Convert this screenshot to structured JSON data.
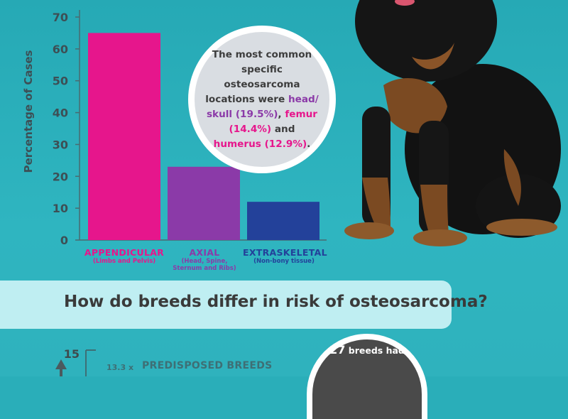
{
  "chart_data": {
    "type": "bar",
    "categories": [
      "APPENDICULAR",
      "AXIAL",
      "EXTRASKELETAL"
    ],
    "category_subtitles": [
      "(Limbs and Pelvis)",
      "(Head, Spine, Sternum and Ribs)",
      "(Non-bony tissue)"
    ],
    "values": [
      65,
      23,
      12
    ],
    "colors": [
      "#e6168c",
      "#8b3aa8",
      "#23419a"
    ],
    "ylabel": "Percentage of Cases",
    "yticks": [
      0,
      10,
      20,
      30,
      40,
      50,
      60,
      70
    ],
    "ylim": [
      0,
      70
    ],
    "grid": false
  },
  "callout": {
    "pre": "The most common specific osteosarcoma locations were",
    "head": "head/ skull (19.5%)",
    "sep1": ",",
    "femur": "femur (14.4%)",
    "and": "and",
    "humerus": "humerus (12.9%)",
    "end": "."
  },
  "section": {
    "heading": "How do breeds differ in risk of osteosarcoma?"
  },
  "breed_chart": {
    "top_tick": "15",
    "ratio": "13.3 x",
    "label": "PREDISPOSED BREEDS"
  },
  "breed_callout": {
    "count": "27",
    "text": "breeds had"
  }
}
